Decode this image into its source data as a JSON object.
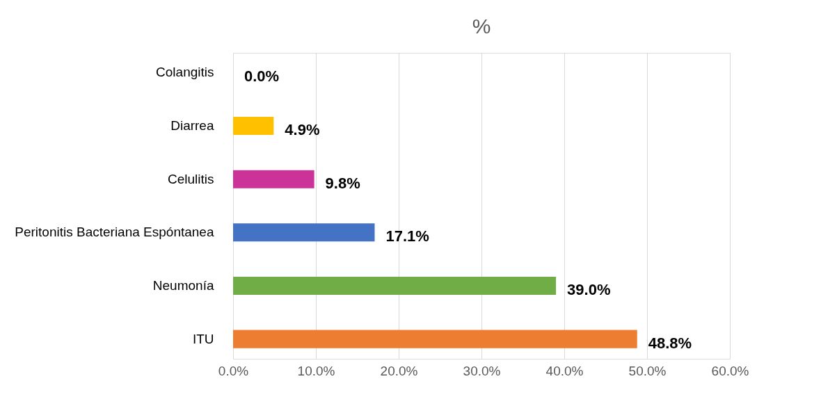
{
  "chart_data": {
    "type": "bar",
    "orientation": "horizontal",
    "title": "%",
    "categories": [
      "Colangitis",
      "Diarrea",
      "Celulitis",
      "Peritonitis Bacteriana Espóntanea",
      "Neumonía",
      "ITU"
    ],
    "values": [
      0.0,
      4.9,
      9.8,
      17.1,
      39.0,
      48.8
    ],
    "colors": [
      "#a5a5a5",
      "#ffc000",
      "#cc3399",
      "#4472c4",
      "#70ad47",
      "#ed7d31"
    ],
    "value_labels": [
      "0.0%",
      "4.9%",
      "9.8%",
      "17.1%",
      "39.0%",
      "48.8%"
    ],
    "xlim": [
      0,
      60
    ],
    "xticks": [
      {
        "value": 0,
        "label": "0.0%"
      },
      {
        "value": 10,
        "label": "10.0%"
      },
      {
        "value": 20,
        "label": "20.0%"
      },
      {
        "value": 30,
        "label": "30.0%"
      },
      {
        "value": 40,
        "label": "40.0%"
      },
      {
        "value": 50,
        "label": "50.0%"
      },
      {
        "value": 60,
        "label": "60.0%"
      }
    ],
    "grid": "x",
    "legend": false
  }
}
